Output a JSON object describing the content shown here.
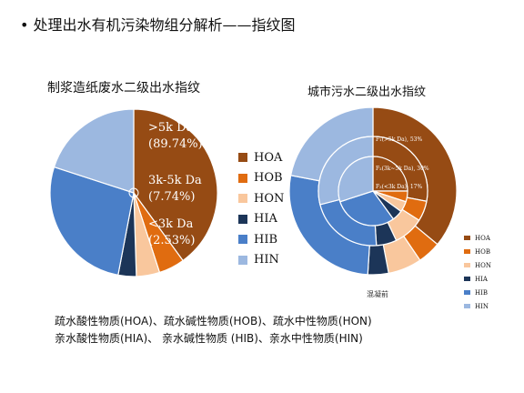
{
  "slide": {
    "bullet": "•",
    "title": "处理出水有机污染物组分解析——指纹图"
  },
  "colors": {
    "HOA": "#964b14",
    "HOB": "#e06c10",
    "HON": "#f9c79d",
    "HIA": "#1c3558",
    "HIB": "#4a7fc8",
    "HIN": "#9cb8e0"
  },
  "chart_data": [
    {
      "type": "pie",
      "title": "制浆造纸废水二级出水指纹",
      "categories": [
        "HOA",
        "HOB",
        "HON",
        "HIA",
        "HIB",
        "HIN"
      ],
      "values": [
        40,
        5,
        4.5,
        3.5,
        27,
        20
      ],
      "annotations": [
        {
          "line1": ">5k Da",
          "line2": "(89.74%)"
        },
        {
          "line1": "3k-5k Da",
          "line2": "(7.74%)"
        },
        {
          "line1": "<3k Da",
          "line2": "(2.53%)"
        }
      ],
      "legend": {
        "position": "right",
        "entries": [
          "HOA",
          "HOB",
          "HON",
          "HIA",
          "HIB",
          "HIN"
        ]
      }
    },
    {
      "type": "pie",
      "title": "城市污水二级出水指纹",
      "subtitle": "混凝前",
      "rings": [
        {
          "name": "outer",
          "categories": [
            "HOA",
            "HOB",
            "HON",
            "HIA",
            "HIB",
            "HIN"
          ],
          "values": [
            36,
            4.5,
            6.5,
            4,
            27,
            22
          ]
        },
        {
          "name": "middle",
          "categories": [
            "HOA",
            "HOB",
            "HON",
            "HIA",
            "HIB",
            "HIN"
          ],
          "values": [
            28,
            6,
            9,
            6,
            22,
            29
          ]
        },
        {
          "name": "inner",
          "categories": [
            "HOA",
            "HOB",
            "HON",
            "HIA",
            "HIB",
            "HIN"
          ],
          "values": [
            25,
            5,
            5,
            5,
            30,
            30
          ]
        }
      ],
      "annotations": [
        "F₁(>5k Da), 53%",
        "F₂(3k~5k Da), 30%",
        "F₃(<3k Da), 17%"
      ],
      "legend": {
        "position": "right",
        "entries": [
          "HOA",
          "HOB",
          "HON",
          "HIA",
          "HIB",
          "HIN"
        ]
      }
    }
  ],
  "footnote": {
    "line1": "疏水酸性物质(HOA)、疏水碱性物质(HOB)、疏水中性物质(HON)",
    "line2": "亲水酸性物质(HIA)、 亲水碱性物质 (HIB)、亲水中性物质(HIN)"
  }
}
